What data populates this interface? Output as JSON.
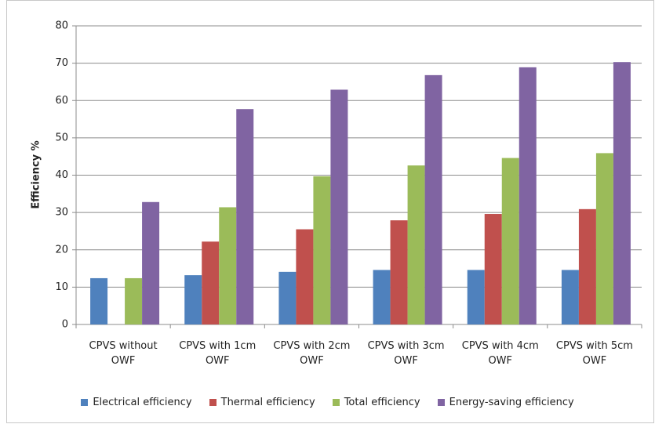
{
  "chart_data": {
    "type": "bar",
    "y_label": "Efficiency %",
    "categories": [
      "CPVS without OWF",
      "CPVS with 1cm OWF",
      "CPVS with 2cm OWF",
      "CPVS with 3cm OWF",
      "CPVS with 4cm OWF",
      "CPVS with 5cm OWF"
    ],
    "series": [
      {
        "name": "Electrical efficiency",
        "color": "#4f81bd",
        "values": [
          12.4,
          13.2,
          14.1,
          14.6,
          14.6,
          14.6
        ]
      },
      {
        "name": "Thermal efficiency",
        "color": "#c0504d",
        "values": [
          0,
          22.2,
          25.5,
          27.9,
          29.6,
          30.9
        ]
      },
      {
        "name": "Total efficiency",
        "color": "#9bbb59",
        "values": [
          12.4,
          31.4,
          39.7,
          42.6,
          44.6,
          45.9
        ]
      },
      {
        "name": "Energy-saving efficiency",
        "color": "#8064a2",
        "values": [
          32.8,
          57.7,
          62.9,
          66.8,
          68.9,
          70.3
        ]
      }
    ],
    "ylim": [
      0,
      80
    ],
    "yticks": [
      0,
      10,
      20,
      30,
      40,
      50,
      60,
      70,
      80
    ],
    "grid": true,
    "legend": "bottom"
  }
}
